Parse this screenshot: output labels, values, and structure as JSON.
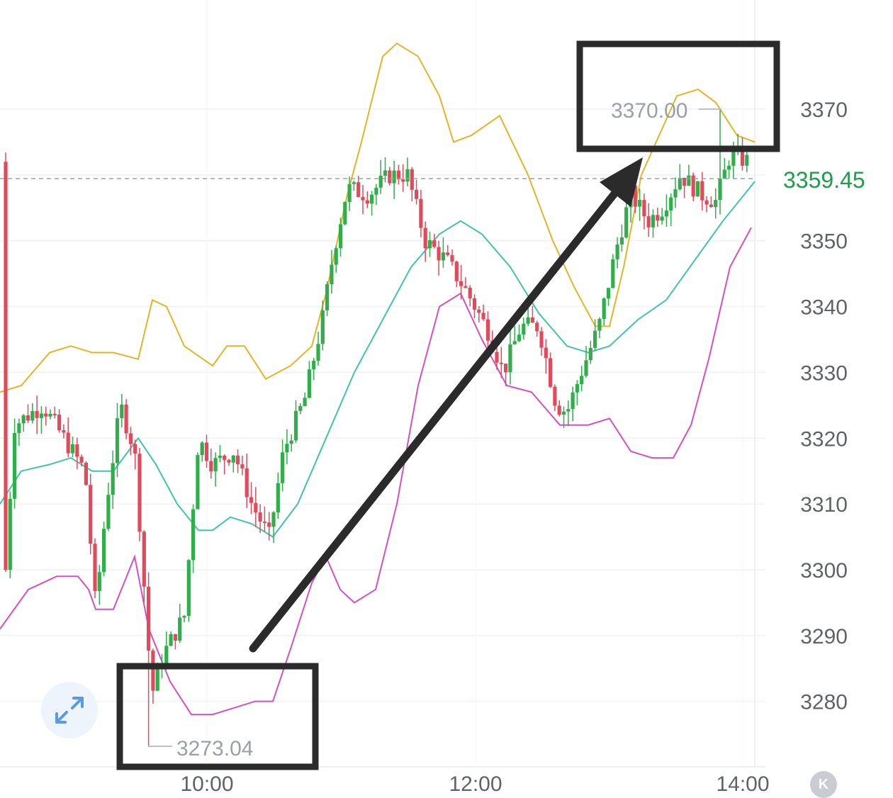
{
  "chart_data": {
    "type": "candlestick",
    "y_ticks": [
      3370,
      3350,
      3340,
      3330,
      3320,
      3310,
      3300,
      3290,
      3280
    ],
    "y_tick_labels": [
      "3370",
      "3350",
      "3340",
      "3330",
      "3320",
      "3310",
      "3300",
      "3290",
      "3280"
    ],
    "x_ticks": [
      "10:00",
      "12:00",
      "14:00"
    ],
    "current_price_label": "3359.45",
    "current_price": 3359.45,
    "high_label": "3370.00",
    "low_label": "3273.04",
    "indicators": [
      "Bollinger upper band",
      "Bollinger middle band",
      "Bollinger lower band"
    ],
    "up_color": "#2fae49",
    "down_color": "#e24a5b",
    "upper_band_color": "#e6b422",
    "middle_band_color": "#3cc6a6",
    "lower_band_color": "#d64ec6",
    "annotation_arrow": "from low box to high box"
  },
  "icons": {
    "fullscreen": "expand-arrows-icon",
    "kline": "K"
  }
}
